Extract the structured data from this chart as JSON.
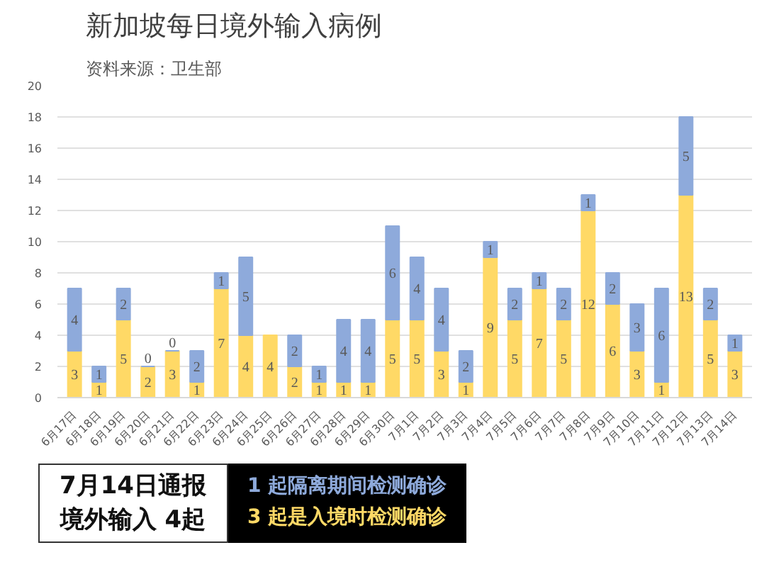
{
  "chart_data": {
    "type": "bar",
    "title": "新加坡每日境外输入病例",
    "subtitle": "资料来源：卫生部",
    "categories": [
      "6月17日",
      "6月18日",
      "6月19日",
      "6月20日",
      "6月21日",
      "6月22日",
      "6月23日",
      "6月24日",
      "6月25日",
      "6月26日",
      "6月27日",
      "6月28日",
      "6月29日",
      "6月30日",
      "7月1日",
      "7月2日",
      "7月3日",
      "7月4日",
      "7月5日",
      "7月6日",
      "7月7日",
      "7月8日",
      "7月9日",
      "7月10日",
      "7月11日",
      "7月12日",
      "7月13日",
      "7月14日"
    ],
    "stacked": true,
    "series": [
      {
        "color": "#ffd966",
        "values": [
          3,
          1,
          5,
          2,
          3,
          1,
          7,
          4,
          4,
          2,
          1,
          1,
          1,
          5,
          5,
          3,
          1,
          9,
          5,
          7,
          5,
          12,
          6,
          3,
          1,
          13,
          5,
          3
        ]
      },
      {
        "color": "#8eaadb",
        "values": [
          4,
          1,
          2,
          0,
          0,
          2,
          1,
          5,
          null,
          2,
          1,
          4,
          4,
          6,
          4,
          4,
          2,
          1,
          2,
          1,
          2,
          1,
          2,
          3,
          6,
          5,
          2,
          1
        ]
      }
    ],
    "data_labels": true,
    "ylim": [
      0,
      20
    ],
    "yticks": [
      0,
      2,
      4,
      6,
      8,
      10,
      12,
      14,
      16,
      18,
      20
    ],
    "grid": "y",
    "annotations": [
      "7月14日通报",
      "境外输入 4起",
      "1 起隔离期间检测确诊",
      "3 起是入境时检测确诊"
    ]
  }
}
